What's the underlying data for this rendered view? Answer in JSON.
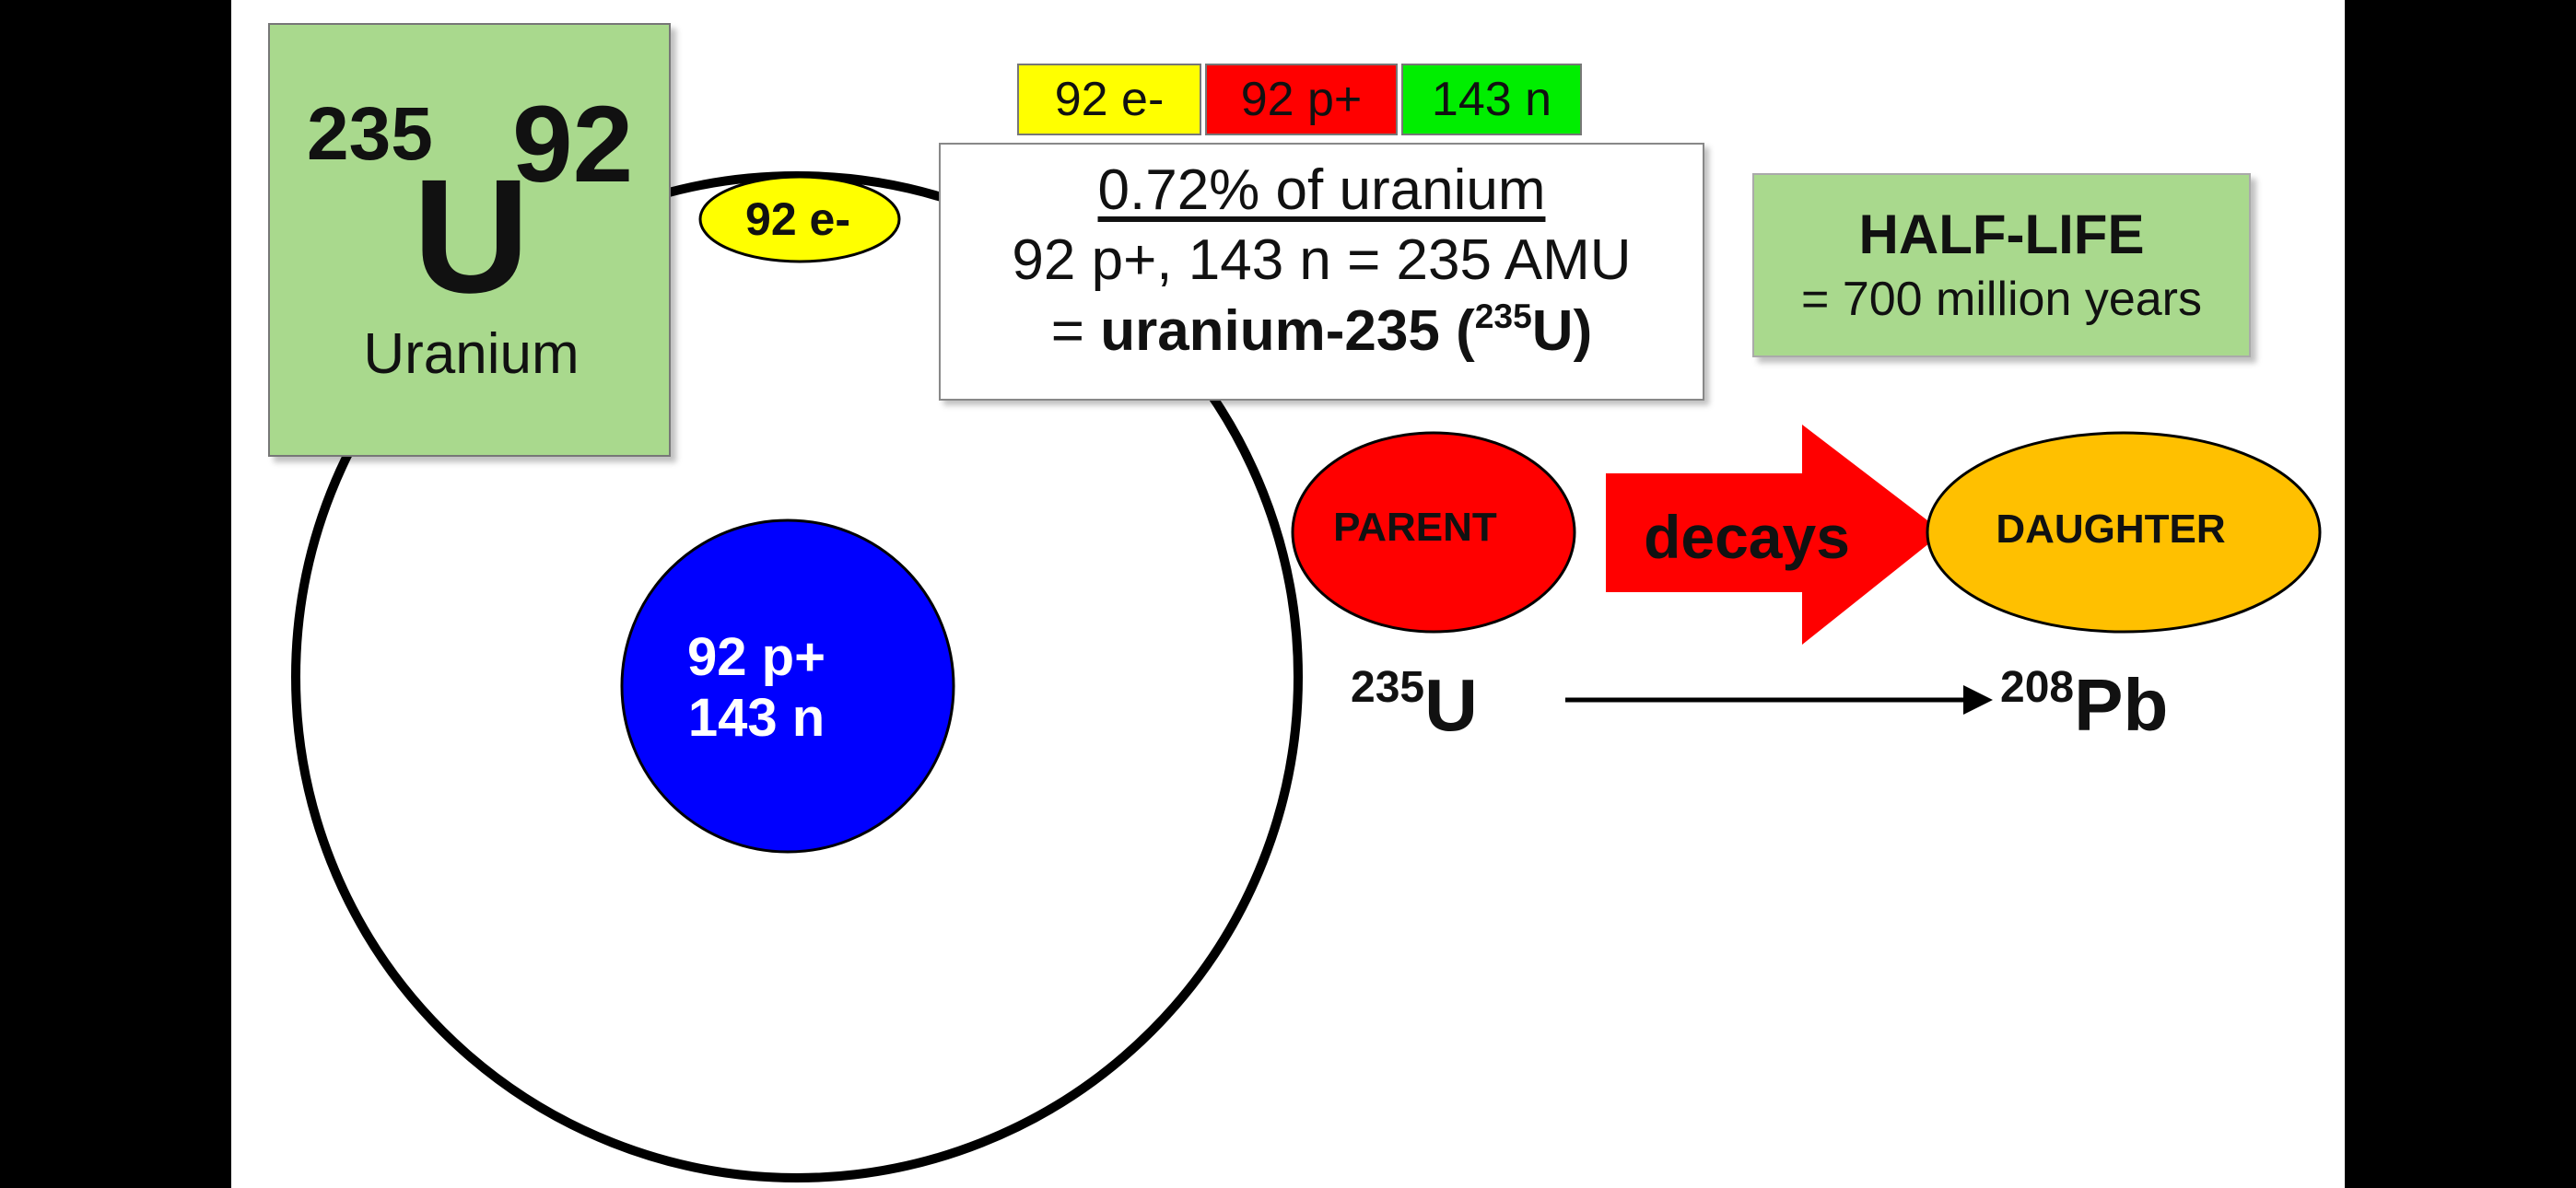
{
  "element_tile": {
    "mass_number": "235",
    "atomic_number": "92",
    "symbol": "U",
    "name": "Uranium",
    "color": "#a9d98d"
  },
  "particle_boxes": {
    "electrons": "92 e-",
    "protons": "92 p+",
    "neutrons": "143 n",
    "colors": {
      "electrons": "#ffff00",
      "protons": "#ff0000",
      "neutrons": "#00ee00"
    }
  },
  "info_box": {
    "line1": "0.72% of uranium",
    "line2": "92 p+, 143 n = 235 AMU",
    "line3_prefix": "= ",
    "line3_name": "uranium-235 (",
    "line3_mass": "235",
    "line3_symbol": "U)"
  },
  "half_life": {
    "title": "HALF-LIFE",
    "value": "= 700 million years"
  },
  "atom_model": {
    "nucleus_protons": "92 p+",
    "nucleus_neutrons": "143 n",
    "electron_label": "92 e-",
    "nucleus_color": "#0000ff",
    "electron_color": "#ffff00"
  },
  "decay": {
    "parent_label": "PARENT",
    "arrow_label": "decays",
    "daughter_label": "DAUGHTER",
    "parent_mass": "235",
    "parent_symbol": "U",
    "daughter_mass": "208",
    "daughter_symbol": "Pb",
    "parent_color": "#ff0000",
    "arrow_color": "#ff0000",
    "daughter_color": "#ffc000"
  }
}
